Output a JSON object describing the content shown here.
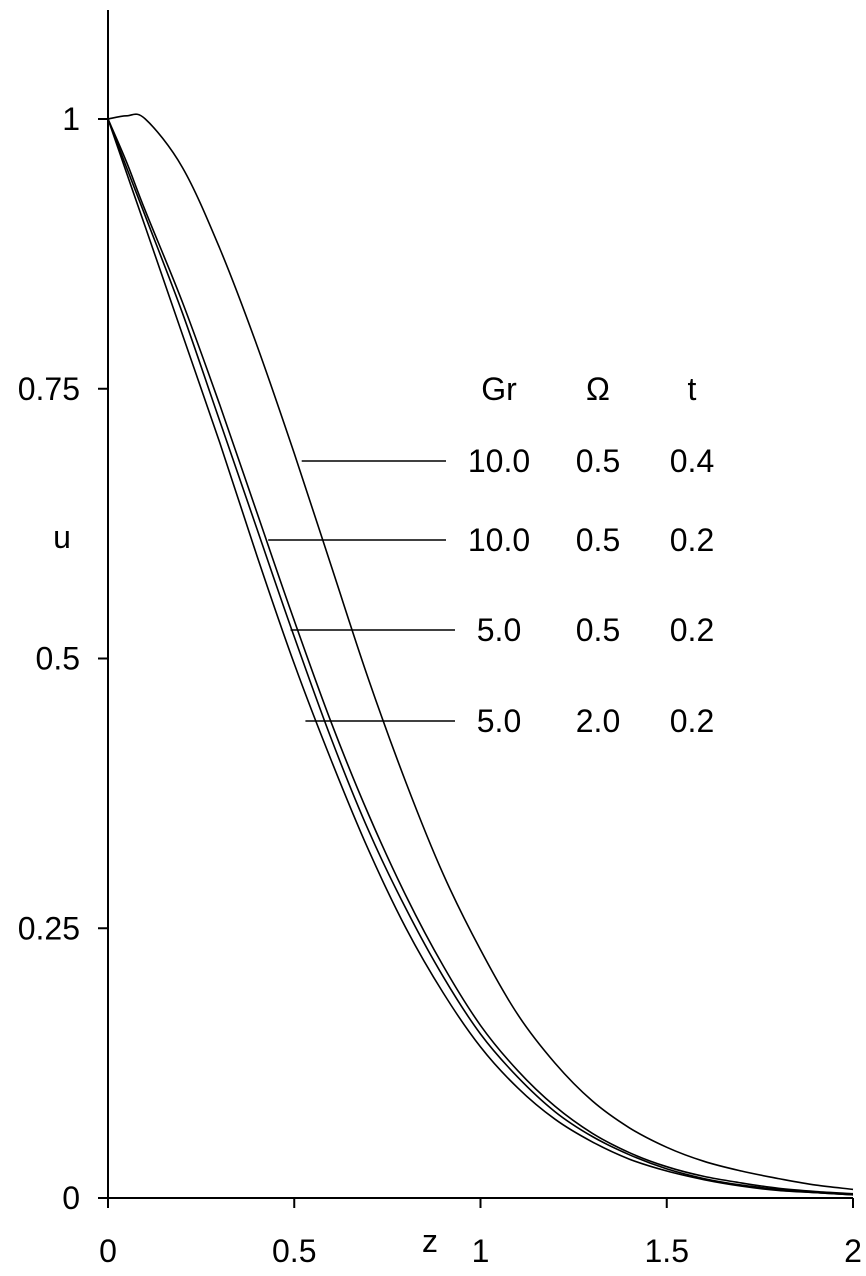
{
  "chart_data": {
    "type": "line",
    "title": "",
    "xlabel": "z",
    "ylabel": "u",
    "xlim": [
      0,
      2
    ],
    "ylim": [
      0,
      1.0
    ],
    "x_ticks": [
      "0",
      "0.5",
      "1",
      "1.5",
      "2"
    ],
    "y_ticks": [
      "0",
      "0.25",
      "0.5",
      "0.75",
      "1"
    ],
    "grid": false,
    "legend_table": {
      "headers": [
        "Gr",
        "Ω",
        "t"
      ],
      "rows": [
        [
          "10.0",
          "0.5",
          "0.4"
        ],
        [
          "10.0",
          "0.5",
          "0.2"
        ],
        [
          "5.0",
          "0.5",
          "0.2"
        ],
        [
          "5.0",
          "2.0",
          "0.2"
        ]
      ]
    },
    "series": [
      {
        "x": [
          0,
          0.05,
          0.1,
          0.2,
          0.3,
          0.4,
          0.5,
          0.6,
          0.7,
          0.8,
          0.9,
          1.0,
          1.1,
          1.2,
          1.3,
          1.4,
          1.5,
          1.6,
          1.7,
          1.8,
          1.9,
          2.0
        ],
        "y": [
          1.0,
          1.003,
          1.0,
          0.955,
          0.88,
          0.79,
          0.69,
          0.585,
          0.48,
          0.385,
          0.3,
          0.23,
          0.17,
          0.125,
          0.09,
          0.065,
          0.047,
          0.034,
          0.025,
          0.018,
          0.012,
          0.008
        ]
      },
      {
        "x": [
          0,
          0.05,
          0.1,
          0.2,
          0.3,
          0.4,
          0.5,
          0.6,
          0.7,
          0.8,
          0.9,
          1.0,
          1.1,
          1.2,
          1.3,
          1.4,
          1.5,
          1.6,
          1.7,
          1.8,
          1.9,
          2.0
        ],
        "y": [
          1.0,
          0.96,
          0.915,
          0.83,
          0.735,
          0.635,
          0.535,
          0.44,
          0.355,
          0.28,
          0.215,
          0.16,
          0.118,
          0.085,
          0.06,
          0.042,
          0.029,
          0.02,
          0.014,
          0.009,
          0.006,
          0.004
        ]
      },
      {
        "x": [
          0,
          0.05,
          0.1,
          0.2,
          0.3,
          0.4,
          0.5,
          0.6,
          0.7,
          0.8,
          0.9,
          1.0,
          1.1,
          1.2,
          1.3,
          1.4,
          1.5,
          1.6,
          1.7,
          1.8,
          1.9,
          2.0
        ],
        "y": [
          1.0,
          0.955,
          0.91,
          0.82,
          0.72,
          0.62,
          0.52,
          0.425,
          0.34,
          0.268,
          0.205,
          0.152,
          0.112,
          0.08,
          0.057,
          0.04,
          0.027,
          0.018,
          0.012,
          0.008,
          0.005,
          0.003
        ]
      },
      {
        "x": [
          0,
          0.05,
          0.1,
          0.2,
          0.3,
          0.4,
          0.5,
          0.6,
          0.7,
          0.8,
          0.9,
          1.0,
          1.1,
          1.2,
          1.3,
          1.4,
          1.5,
          1.6,
          1.7,
          1.8,
          1.9,
          2.0
        ],
        "y": [
          1.0,
          0.95,
          0.9,
          0.8,
          0.7,
          0.595,
          0.495,
          0.405,
          0.322,
          0.25,
          0.19,
          0.14,
          0.102,
          0.073,
          0.052,
          0.036,
          0.025,
          0.017,
          0.011,
          0.007,
          0.005,
          0.003
        ]
      }
    ],
    "leader_points": [
      {
        "x": 0.52,
        "y": 0.685
      },
      {
        "x": 0.43,
        "y": 0.608
      },
      {
        "x": 0.49,
        "y": 0.53
      },
      {
        "x": 0.53,
        "y": 0.445
      }
    ]
  }
}
